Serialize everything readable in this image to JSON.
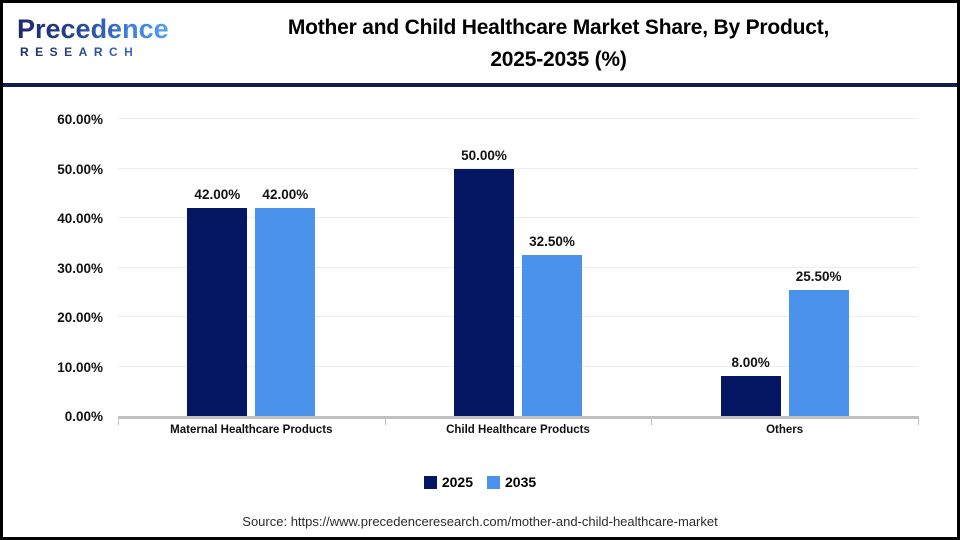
{
  "header": {
    "logo_line1": "Precedence",
    "logo_line2": "RESEARCH",
    "title_line1": "Mother and Child Healthcare Market Share, By Product,",
    "title_line2": "2025-2035 (%)"
  },
  "footer": {
    "source": "Source: https://www.precedenceresearch.com/mother-and-child-healthcare-market"
  },
  "colors": {
    "series_2025": "#051663",
    "series_2035": "#4A92EC",
    "divider_navy": "#131C4B",
    "gridline": "#EDEDED",
    "axis_baseline": "#C0C0C0"
  },
  "chart_data": {
    "type": "bar",
    "title": "Mother and Child Healthcare Market Share, By Product, 2025-2035 (%)",
    "categories": [
      "Maternal Healthcare Products",
      "Child Healthcare Products",
      "Others"
    ],
    "series": [
      {
        "name": "2025",
        "color": "#051663",
        "values": [
          42.0,
          50.0,
          8.0
        ],
        "labels": [
          "42.00%",
          "50.00%",
          "8.00%"
        ]
      },
      {
        "name": "2035",
        "color": "#4A92EC",
        "values": [
          42.0,
          32.5,
          25.5
        ],
        "labels": [
          "42.00%",
          "32.50%",
          "25.50%"
        ]
      }
    ],
    "y_ticks": [
      "0.00%",
      "10.00%",
      "20.00%",
      "30.00%",
      "40.00%",
      "50.00%",
      "60.00%"
    ],
    "ylim": [
      0,
      60
    ],
    "grid": true,
    "legend_position": "bottom",
    "xlabel": "",
    "ylabel": ""
  }
}
